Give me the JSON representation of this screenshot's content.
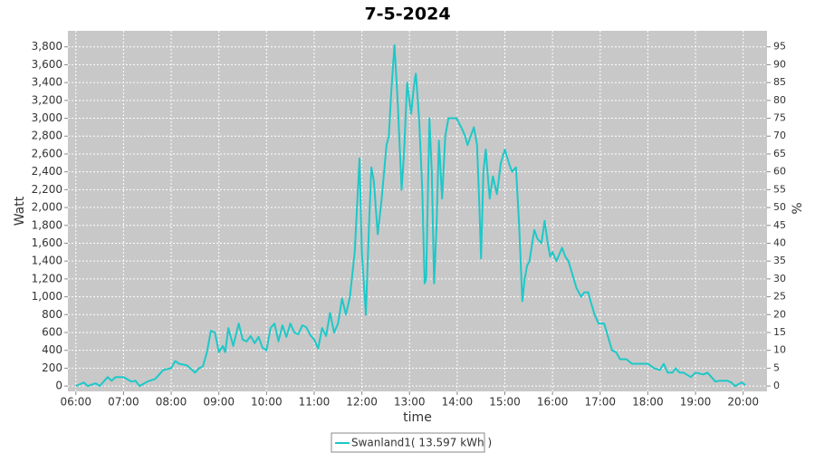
{
  "chart_data": {
    "type": "line",
    "title": "7-5-2024",
    "x_label": "time",
    "y_label": "Watt",
    "y2_label": "%",
    "grid": true,
    "legend": "bottom",
    "xlim": [
      350,
      1230
    ],
    "xticks": [
      {
        "value": 360,
        "label": "06:00"
      },
      {
        "value": 420,
        "label": "07:00"
      },
      {
        "value": 480,
        "label": "08:00"
      },
      {
        "value": 540,
        "label": "09:00"
      },
      {
        "value": 600,
        "label": "10:00"
      },
      {
        "value": 660,
        "label": "11:00"
      },
      {
        "value": 720,
        "label": "12:00"
      },
      {
        "value": 780,
        "label": "13:00"
      },
      {
        "value": 840,
        "label": "14:00"
      },
      {
        "value": 900,
        "label": "15:00"
      },
      {
        "value": 960,
        "label": "16:00"
      },
      {
        "value": 1020,
        "label": "17:00"
      },
      {
        "value": 1080,
        "label": "18:00"
      },
      {
        "value": 1140,
        "label": "19:00"
      },
      {
        "value": 1200,
        "label": "20:00"
      }
    ],
    "ylim": [
      -60,
      3980
    ],
    "yticks": [
      0,
      200,
      400,
      600,
      800,
      {
        "value": 1000,
        "label": "1,000"
      },
      {
        "value": 1200,
        "label": "1,200"
      },
      {
        "value": 1400,
        "label": "1,400"
      },
      {
        "value": 1600,
        "label": "1,600"
      },
      {
        "value": 1800,
        "label": "1,800"
      },
      {
        "value": 2000,
        "label": "2,000"
      },
      {
        "value": 2200,
        "label": "2,200"
      },
      {
        "value": 2400,
        "label": "2,400"
      },
      {
        "value": 2600,
        "label": "2,600"
      },
      {
        "value": 2800,
        "label": "2,800"
      },
      {
        "value": 3000,
        "label": "3,000"
      },
      {
        "value": 3200,
        "label": "3,200"
      },
      {
        "value": 3400,
        "label": "3,400"
      },
      {
        "value": 3600,
        "label": "3,600"
      },
      {
        "value": 3800,
        "label": "3,800"
      }
    ],
    "y2lim": [
      -1.5,
      99.5
    ],
    "y2ticks": [
      0,
      5,
      10,
      15,
      20,
      25,
      30,
      35,
      40,
      45,
      50,
      55,
      60,
      65,
      70,
      75,
      80,
      85,
      90,
      95
    ],
    "x": [
      360,
      370,
      375,
      385,
      390,
      400,
      405,
      410,
      420,
      430,
      435,
      440,
      450,
      460,
      470,
      480,
      485,
      490,
      500,
      510,
      515,
      520,
      525,
      530,
      535,
      540,
      545,
      548,
      552,
      558,
      565,
      570,
      575,
      580,
      585,
      590,
      595,
      600,
      605,
      610,
      615,
      620,
      625,
      630,
      635,
      640,
      645,
      650,
      655,
      660,
      665,
      670,
      675,
      680,
      685,
      690,
      695,
      700,
      705,
      711,
      717,
      720,
      725,
      729,
      732,
      735,
      740,
      745,
      751,
      754,
      757,
      761,
      765,
      770,
      773,
      777,
      782,
      786,
      788,
      792,
      796,
      799,
      801,
      805,
      808,
      811,
      814,
      817,
      821,
      825,
      829,
      839,
      845,
      850,
      853,
      857,
      861,
      865,
      868,
      870,
      873,
      876,
      879,
      881,
      885,
      890,
      895,
      900,
      905,
      909,
      914,
      918,
      922,
      925,
      928,
      931,
      937,
      941,
      946,
      950,
      954,
      957,
      960,
      965,
      972,
      976,
      980,
      985,
      990,
      996,
      1000,
      1005,
      1008,
      1013,
      1018,
      1025,
      1030,
      1035,
      1040,
      1045,
      1053,
      1060,
      1070,
      1080,
      1088,
      1095,
      1100,
      1105,
      1111,
      1115,
      1120,
      1125,
      1134,
      1140,
      1150,
      1155,
      1160,
      1165,
      1170,
      1180,
      1185,
      1190,
      1198,
      1203
    ],
    "series": [
      {
        "name": "Swanland1( 13.597 kWh )",
        "color": "#1ec8c8",
        "values": [
          0,
          40,
          0,
          30,
          0,
          100,
          60,
          100,
          100,
          50,
          60,
          0,
          50,
          80,
          180,
          200,
          280,
          250,
          230,
          150,
          200,
          220,
          380,
          620,
          600,
          380,
          450,
          380,
          650,
          450,
          700,
          520,
          500,
          560,
          480,
          550,
          430,
          400,
          650,
          700,
          500,
          680,
          550,
          700,
          600,
          580,
          680,
          660,
          570,
          520,
          420,
          650,
          560,
          820,
          600,
          700,
          980,
          800,
          1000,
          1500,
          2550,
          1500,
          800,
          1800,
          2450,
          2300,
          1700,
          2100,
          2700,
          2800,
          3300,
          3820,
          3200,
          2200,
          2600,
          3400,
          3050,
          3400,
          3500,
          3000,
          2200,
          1150,
          1200,
          3000,
          2400,
          1150,
          1800,
          2750,
          2100,
          2800,
          3000,
          3000,
          2900,
          2800,
          2700,
          2800,
          2900,
          2700,
          2000,
          1430,
          2400,
          2650,
          2300,
          2100,
          2350,
          2150,
          2500,
          2650,
          2500,
          2400,
          2450,
          1800,
          950,
          1200,
          1350,
          1400,
          1750,
          1650,
          1600,
          1850,
          1600,
          1450,
          1500,
          1400,
          1550,
          1450,
          1400,
          1250,
          1100,
          1000,
          1050,
          1050,
          950,
          800,
          700,
          700,
          550,
          400,
          380,
          300,
          300,
          250,
          250,
          250,
          200,
          180,
          250,
          150,
          150,
          200,
          150,
          150,
          100,
          150,
          130,
          150,
          100,
          50,
          60,
          60,
          40,
          0,
          40,
          10
        ]
      }
    ]
  }
}
